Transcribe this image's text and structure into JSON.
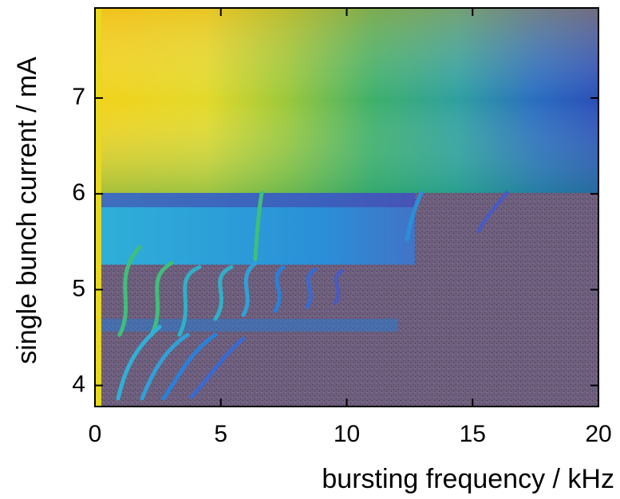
{
  "chart_data": {
    "type": "heatmap",
    "x_label": "bursting frequency / kHz",
    "y_label": "single bunch current / mA",
    "xlim": [
      0,
      20
    ],
    "xticks": [
      0,
      5,
      10,
      15,
      20
    ],
    "ylim": [
      3.78,
      7.94
    ],
    "yticks": [
      4,
      5,
      6,
      7
    ]
  }
}
